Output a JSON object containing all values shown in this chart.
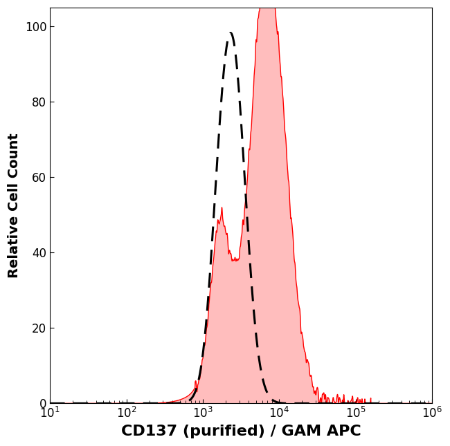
{
  "title": "",
  "xlabel": "CD137 (purified) / GAM APC",
  "ylabel": "Relative Cell Count",
  "xlim_log": [
    1,
    6
  ],
  "ylim": [
    0,
    105
  ],
  "yticks": [
    0,
    20,
    40,
    60,
    80,
    100
  ],
  "background_color": "#ffffff",
  "filled_color": "#ff0000",
  "filled_fill_color": "#ff8888",
  "filled_alpha": 0.55,
  "dashed_color": "#000000",
  "dashed_linewidth": 2.2,
  "filled_linewidth": 1.0,
  "xlabel_fontsize": 16,
  "ylabel_fontsize": 14,
  "tick_fontsize": 12
}
